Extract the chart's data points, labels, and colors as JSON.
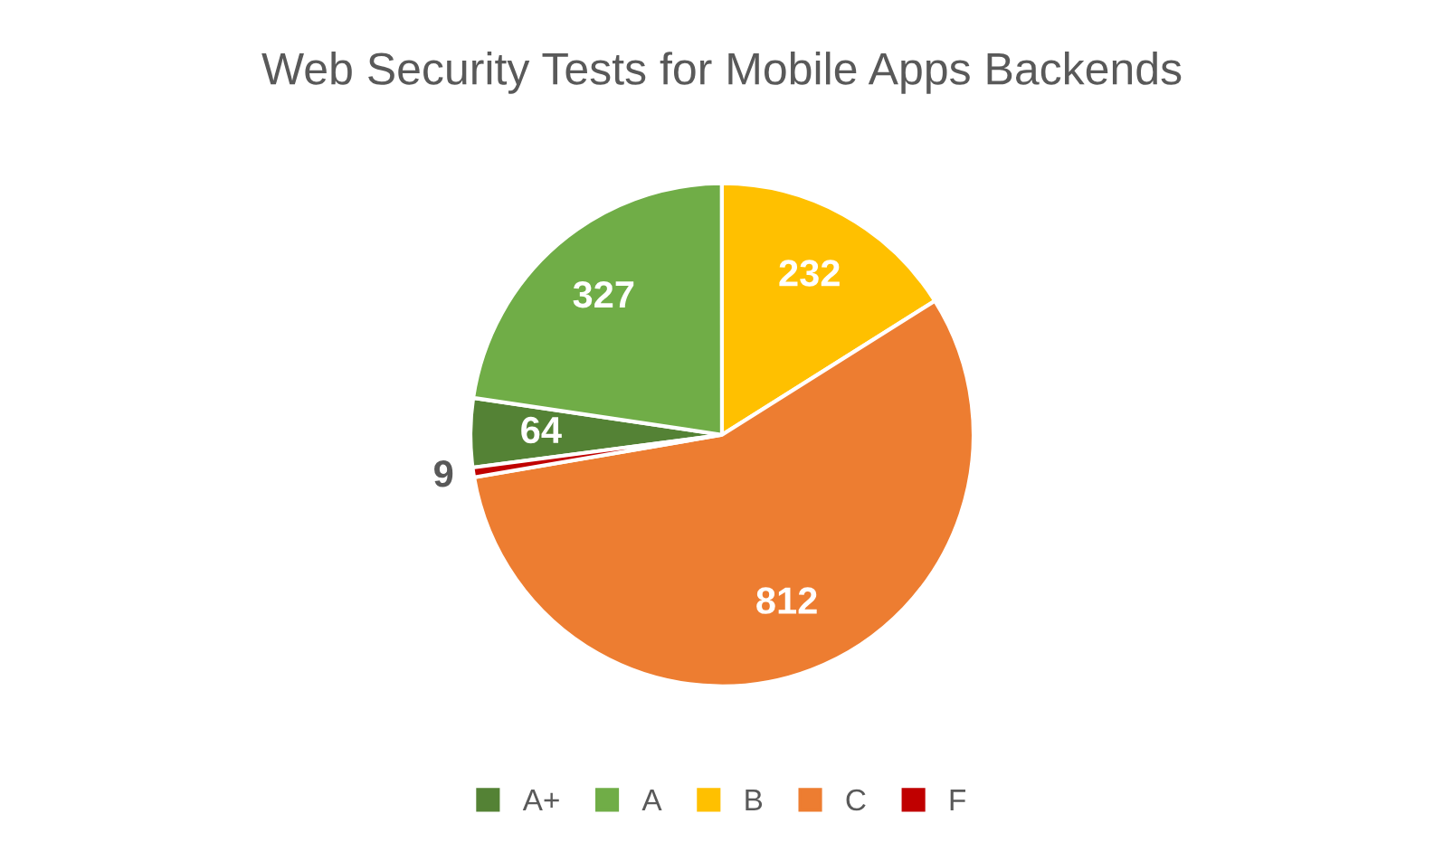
{
  "chart_data": {
    "type": "pie",
    "title": "Web Security Tests for Mobile Apps Backends",
    "categories": [
      "A+",
      "A",
      "B",
      "C",
      "F"
    ],
    "values": [
      64,
      327,
      232,
      812,
      9
    ],
    "colors": [
      "#548235",
      "#70ad47",
      "#ffc000",
      "#ed7d31",
      "#c00000"
    ],
    "data_labels": true,
    "legend": "bottom"
  }
}
